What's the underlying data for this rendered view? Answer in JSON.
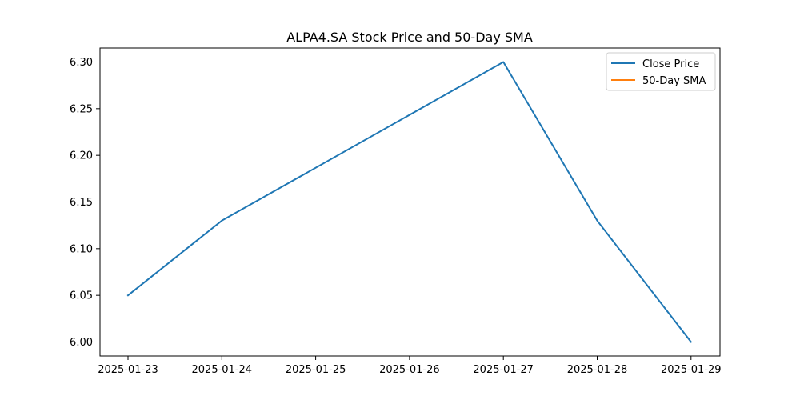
{
  "chart_data": {
    "type": "line",
    "title": "ALPA4.SA Stock Price and 50-Day SMA",
    "xlabel": "",
    "ylabel": "",
    "x": [
      "2025-01-23",
      "2025-01-24",
      "2025-01-25",
      "2025-01-26",
      "2025-01-27",
      "2025-01-28",
      "2025-01-29"
    ],
    "x_ticks": [
      "2025-01-23",
      "2025-01-24",
      "2025-01-25",
      "2025-01-26",
      "2025-01-27",
      "2025-01-28",
      "2025-01-29"
    ],
    "y_ticks": [
      "6.00",
      "6.05",
      "6.10",
      "6.15",
      "6.20",
      "6.25",
      "6.30"
    ],
    "ylim": [
      5.985,
      6.315
    ],
    "grid": false,
    "legend_position": "upper right",
    "series": [
      {
        "name": "Close Price",
        "color": "#1f77b4",
        "points": [
          {
            "x": "2025-01-23",
            "y": 6.05
          },
          {
            "x": "2025-01-24",
            "y": 6.13
          },
          {
            "x": "2025-01-27",
            "y": 6.3
          },
          {
            "x": "2025-01-28",
            "y": 6.13
          },
          {
            "x": "2025-01-29",
            "y": 6.0
          }
        ]
      },
      {
        "name": "50-Day SMA",
        "color": "#ff7f0e",
        "points": []
      }
    ]
  }
}
